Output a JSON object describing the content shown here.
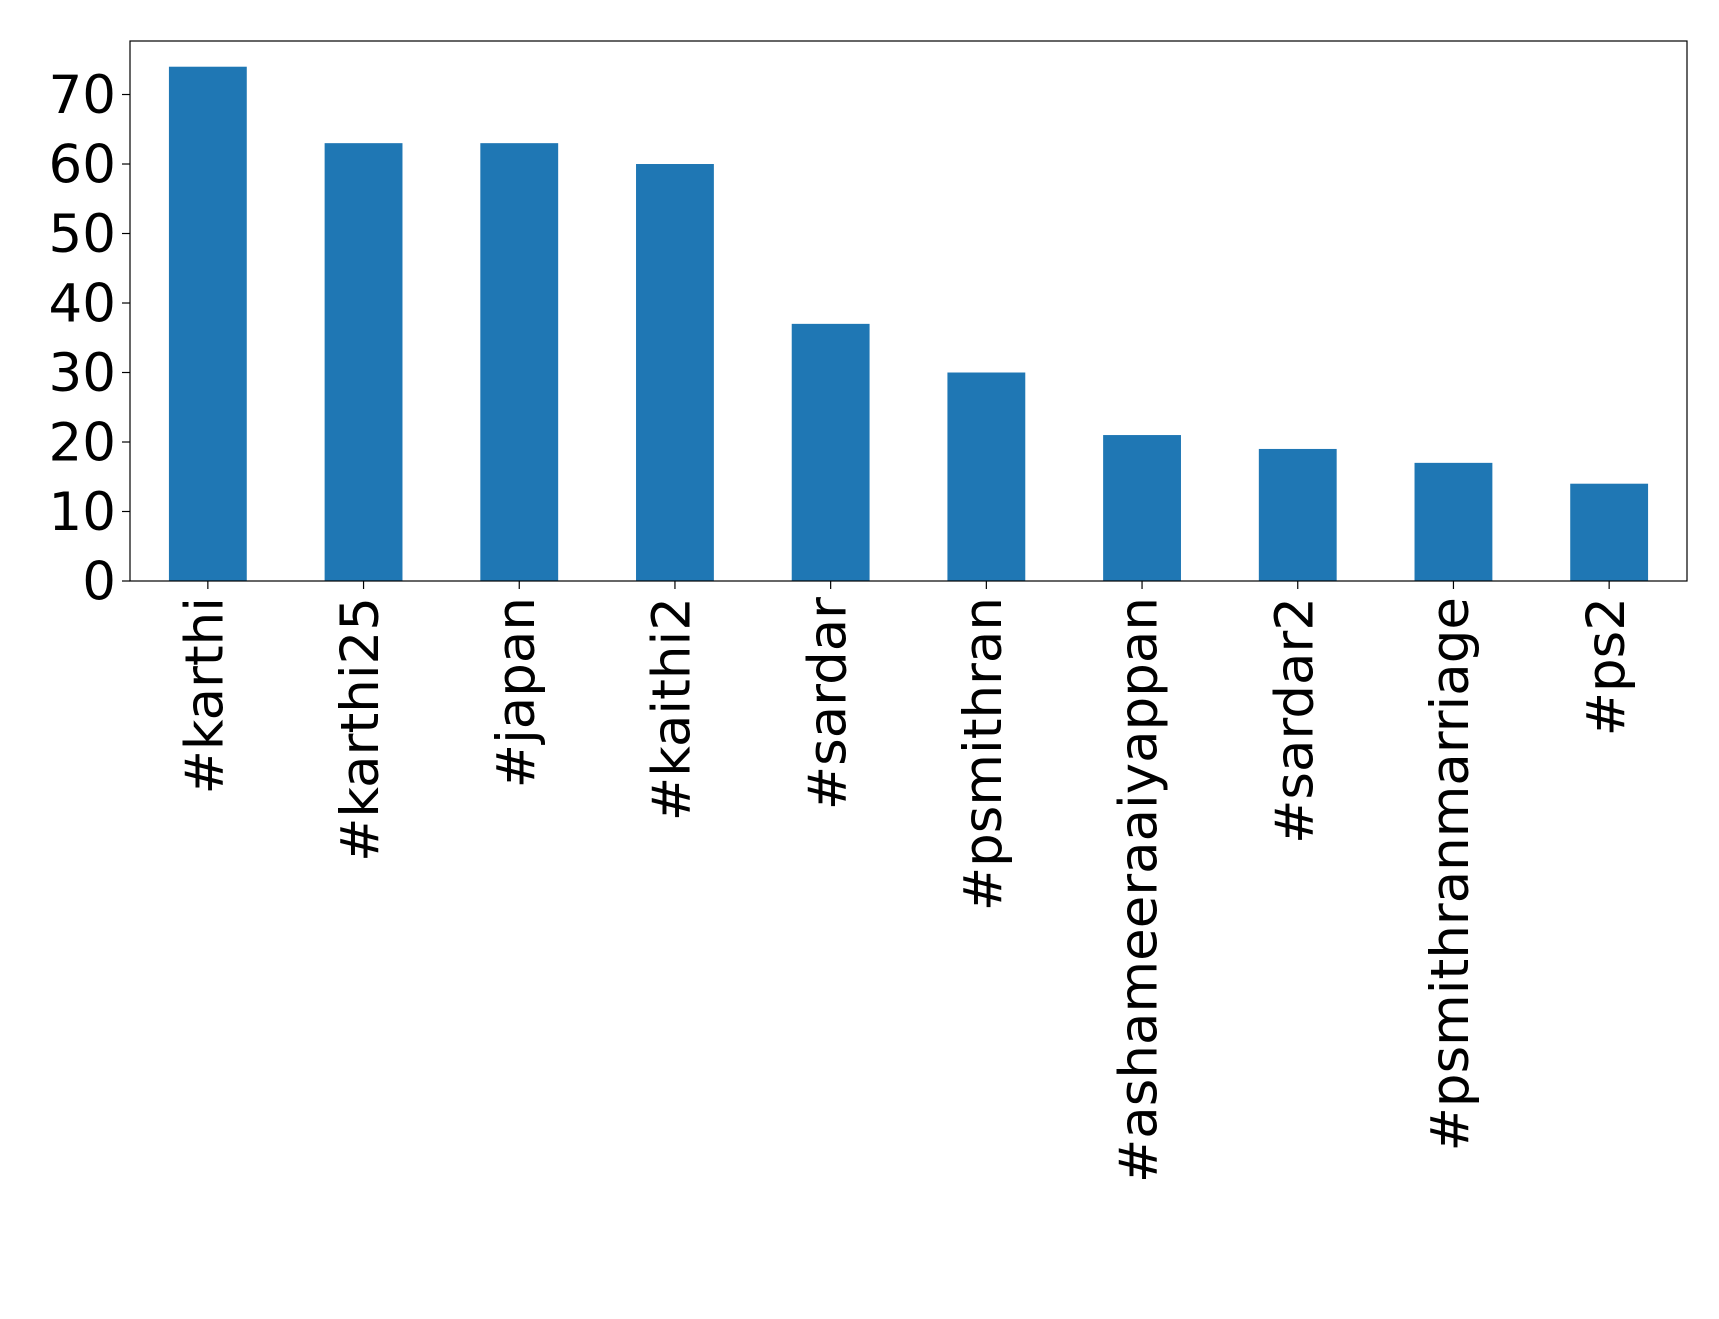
{
  "chart_data": {
    "type": "bar",
    "categories": [
      "#karthi",
      "#karthi25",
      "#japan",
      "#kaithi2",
      "#sardar",
      "#psmithran",
      "#ashameeraaiyappan",
      "#sardar2",
      "#psmithranmarriage",
      "#ps2"
    ],
    "values": [
      74,
      63,
      63,
      60,
      37,
      30,
      21,
      19,
      17,
      14
    ],
    "color": "#1f77b4",
    "ylim": [
      0,
      77.7
    ],
    "yticks": [
      0,
      10,
      20,
      30,
      40,
      50,
      60,
      70
    ],
    "grid": false
  }
}
